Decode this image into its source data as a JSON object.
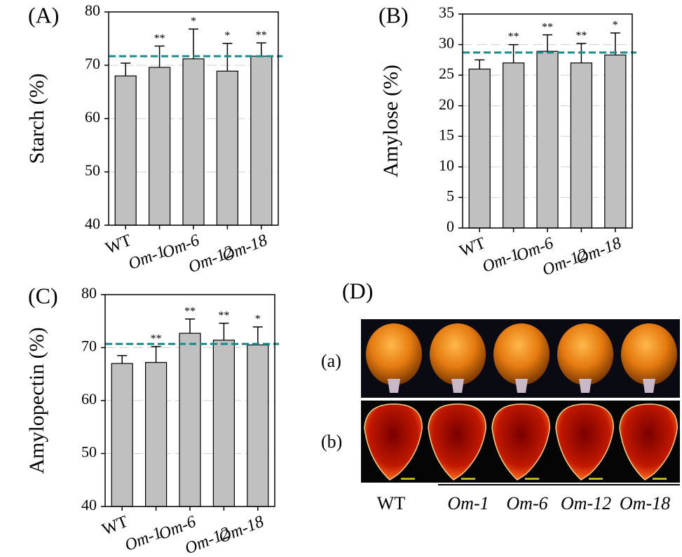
{
  "chart_data": [
    {
      "type": "bar",
      "panel_label": "(A)",
      "ylabel": "Starch (%)",
      "categories": [
        "WT",
        "Om-1",
        "Om-6",
        "Om-12",
        "Om-18"
      ],
      "values": [
        68,
        69.6,
        71.2,
        68.9,
        71.7
      ],
      "errors": [
        2.4,
        4,
        5.6,
        5.2,
        2.5
      ],
      "significance": [
        null,
        "**",
        "*",
        "*",
        "**"
      ],
      "ref_line": 71.7,
      "ylim": [
        40,
        80
      ],
      "yticks": [
        40,
        50,
        60,
        70,
        80
      ],
      "color": "#c0c0c0",
      "ref_color": "#1a8a8a",
      "grid": true
    },
    {
      "type": "bar",
      "panel_label": "(B)",
      "ylabel": "Amylose (%)",
      "categories": [
        "WT",
        "Om-1",
        "Om-6",
        "Om-12",
        "Om-18"
      ],
      "values": [
        26,
        27,
        28.9,
        27,
        28.3
      ],
      "errors": [
        1.5,
        3,
        2.7,
        3.2,
        3.6
      ],
      "significance": [
        null,
        "**",
        "**",
        "**",
        "*"
      ],
      "ref_line": 28.7,
      "ylim": [
        0,
        35
      ],
      "yticks": [
        0,
        5,
        10,
        15,
        20,
        25,
        30,
        35
      ],
      "color": "#c0c0c0",
      "ref_color": "#1a8a8a",
      "grid": true
    },
    {
      "type": "bar",
      "panel_label": "(C)",
      "ylabel": "Amylopectin (%)",
      "categories": [
        "WT",
        "Om-1",
        "Om-6",
        "Om-12",
        "Om-18"
      ],
      "values": [
        67,
        67.2,
        72.7,
        71.4,
        70.5
      ],
      "errors": [
        1.5,
        3,
        2.7,
        3.2,
        3.4
      ],
      "significance": [
        null,
        "**",
        "**",
        "**",
        "*"
      ],
      "ref_line": 70.7,
      "ylim": [
        40,
        80
      ],
      "yticks": [
        40,
        50,
        60,
        70,
        80
      ],
      "color": "#c0c0c0",
      "ref_color": "#1a8a8a",
      "grid": true
    }
  ],
  "photo_panel": {
    "label": "(D)",
    "rows": [
      "(a)",
      "(b)"
    ],
    "categories": [
      "WT",
      "Om-1",
      "Om-6",
      "Om-12",
      "Om-18"
    ]
  }
}
